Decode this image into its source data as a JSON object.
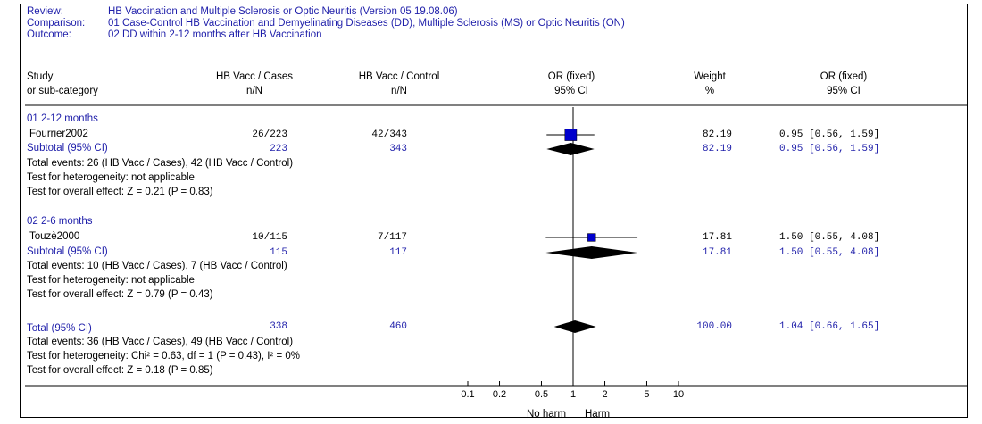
{
  "colors": {
    "accent": "#1f1faa",
    "marker": "#0000cc",
    "diamond": "#000000"
  },
  "header": {
    "review_label": "Review:",
    "review_value": "HB Vaccination and Multiple Sclerosis or Optic Neuritis (Version 05 19.08.06)",
    "comparison_label": "Comparison:",
    "comparison_value": "01 Case-Control HB Vaccination and Demyelinating Diseases (DD), Multiple Sclerosis (MS) or Optic Neuritis (ON)",
    "outcome_label": "Outcome:",
    "outcome_value": "02 DD within 2-12 months after HB Vaccination"
  },
  "columns": {
    "study_1": "Study",
    "study_2": "or sub-category",
    "cases_1": "HB Vacc / Cases",
    "cases_2": "n/N",
    "control_1": "HB Vacc / Control",
    "control_2": "n/N",
    "or_plot_1": "OR (fixed)",
    "or_plot_2": "95% CI",
    "weight_1": "Weight",
    "weight_2": "%",
    "or_text_1": "OR (fixed)",
    "or_text_2": "95% CI"
  },
  "groups": [
    {
      "title": "01 2-12 months",
      "study": {
        "name": "Fourrier2002",
        "cases": "26/223",
        "control": "42/343",
        "weight": "82.19",
        "or_ci": "0.95 [0.56, 1.59]"
      },
      "subtotal": {
        "label": "Subtotal (95% CI)",
        "cases": "223",
        "control": "343",
        "weight": "82.19",
        "or_ci": "0.95 [0.56, 1.59]"
      },
      "events": "Total events: 26 (HB Vacc / Cases), 42 (HB Vacc / Control)",
      "heterogeneity": "Test for heterogeneity: not applicable",
      "overall": "Test for overall effect: Z = 0.21 (P = 0.83)"
    },
    {
      "title": "02 2-6 months",
      "study": {
        "name": "Touzè2000",
        "cases": "10/115",
        "control": "7/117",
        "weight": "17.81",
        "or_ci": "1.50 [0.55, 4.08]"
      },
      "subtotal": {
        "label": "Subtotal (95% CI)",
        "cases": "115",
        "control": "117",
        "weight": "17.81",
        "or_ci": "1.50 [0.55, 4.08]"
      },
      "events": "Total events: 10 (HB Vacc / Cases), 7 (HB Vacc / Control)",
      "heterogeneity": "Test for heterogeneity: not applicable",
      "overall": "Test for overall effect: Z = 0.79 (P = 0.43)"
    }
  ],
  "total": {
    "label": "Total (95% CI)",
    "cases": "338",
    "control": "460",
    "weight": "100.00",
    "or_ci": "1.04 [0.66, 1.65]",
    "events": "Total events: 36 (HB Vacc / Cases), 49 (HB Vacc / Control)",
    "heterogeneity": "Test for heterogeneity: Chi² = 0.63, df = 1 (P = 0.43), I² = 0%",
    "overall": "Test for overall effect: Z = 0.18 (P = 0.85)"
  },
  "axis": {
    "left_label": "No harm",
    "right_label": "Harm"
  },
  "chart_data": {
    "type": "forest",
    "x_scale": "log",
    "xlim": [
      0.1,
      10
    ],
    "x_ticks": [
      "0.1",
      "0.2",
      "0.5",
      "1",
      "2",
      "5",
      "10"
    ],
    "x_tick_values": [
      0.1,
      0.2,
      0.5,
      1,
      2,
      5,
      10
    ],
    "reference_line": 1,
    "studies": [
      {
        "name": "Fourrier2002",
        "or": 0.95,
        "lo": 0.56,
        "hi": 1.59,
        "weight": 82.19
      },
      {
        "name": "Touzè2000",
        "or": 1.5,
        "lo": 0.55,
        "hi": 4.08,
        "weight": 17.81
      }
    ],
    "subtotals": [
      {
        "label": "Subtotal (95% CI)",
        "or": 0.95,
        "lo": 0.56,
        "hi": 1.59
      },
      {
        "label": "Subtotal (95% CI)",
        "or": 1.5,
        "lo": 0.55,
        "hi": 4.08
      }
    ],
    "total": {
      "label": "Total (95% CI)",
      "or": 1.04,
      "lo": 0.66,
      "hi": 1.65
    }
  }
}
